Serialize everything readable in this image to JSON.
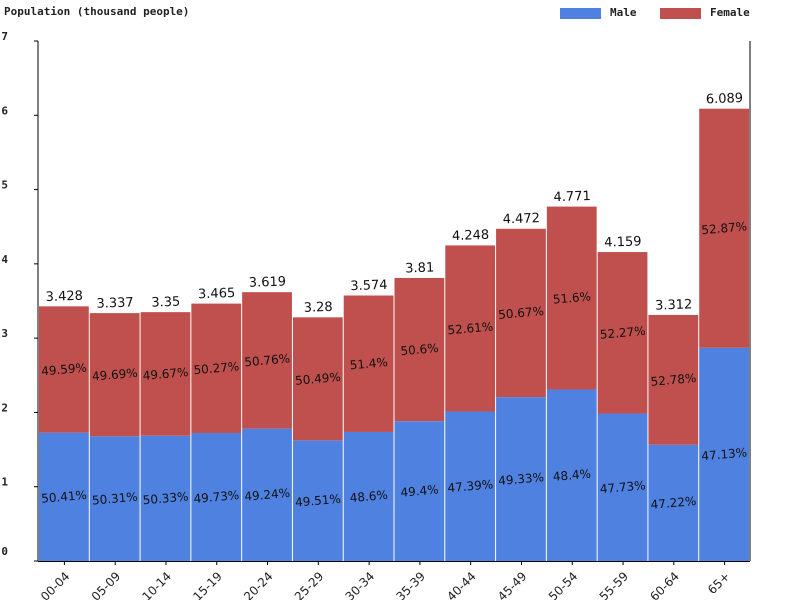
{
  "chart_data": {
    "type": "bar",
    "stacked": true,
    "title": "Population (thousand people)",
    "categories": [
      "00-04",
      "05-09",
      "10-14",
      "15-19",
      "20-24",
      "25-29",
      "30-34",
      "35-39",
      "40-44",
      "45-49",
      "50-54",
      "55-59",
      "60-64",
      "65+"
    ],
    "totals": [
      3.428,
      3.337,
      3.35,
      3.465,
      3.619,
      3.28,
      3.574,
      3.81,
      4.248,
      4.472,
      4.771,
      4.159,
      3.312,
      6.089
    ],
    "total_labels": [
      "3.428",
      "3.337",
      "3.35",
      "3.465",
      "3.619",
      "3.28",
      "3.574",
      "3.81",
      "4.248",
      "4.472",
      "4.771",
      "4.159",
      "3.312",
      "6.089"
    ],
    "series": [
      {
        "name": "Male",
        "color": "#4f81e0",
        "values": [
          1.728,
          1.679,
          1.686,
          1.723,
          1.782,
          1.624,
          1.737,
          1.882,
          2.013,
          2.206,
          2.309,
          1.985,
          1.564,
          2.87
        ],
        "percent_labels": [
          "50.41%",
          "50.31%",
          "50.33%",
          "49.73%",
          "49.24%",
          "49.51%",
          "48.6%",
          "49.4%",
          "47.39%",
          "49.33%",
          "48.4%",
          "47.73%",
          "47.22%",
          "47.13%"
        ]
      },
      {
        "name": "Female",
        "color": "#c0504d",
        "values": [
          1.7,
          1.658,
          1.664,
          1.742,
          1.837,
          1.656,
          1.837,
          1.928,
          2.235,
          2.266,
          2.462,
          2.174,
          1.748,
          3.219
        ],
        "percent_labels": [
          "49.59%",
          "49.69%",
          "49.67%",
          "50.27%",
          "50.76%",
          "50.49%",
          "51.4%",
          "50.6%",
          "52.61%",
          "50.67%",
          "51.6%",
          "52.27%",
          "52.78%",
          "52.87%"
        ]
      }
    ],
    "ylim": [
      0,
      7
    ],
    "yticks": [
      0,
      1,
      2,
      3,
      4,
      5,
      6,
      7
    ],
    "legend_position": "top-right",
    "grid": false
  }
}
